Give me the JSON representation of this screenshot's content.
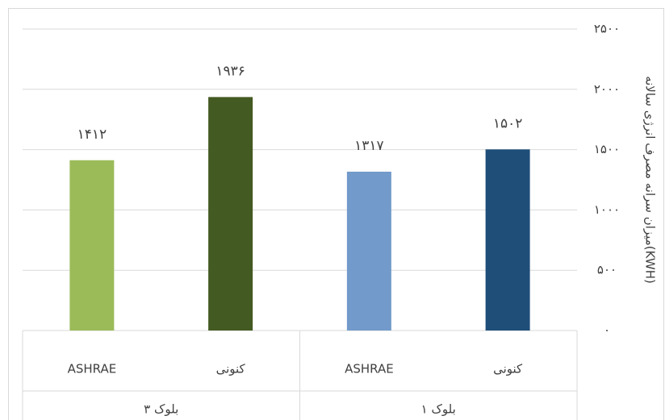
{
  "chart_data": {
    "type": "bar",
    "y_axis_label": "میزان سرانه مصرف انرژی سالانه(KWH)",
    "categories": [
      "ASHRAE",
      "کنونی",
      "ASHRAE",
      "کنونی"
    ],
    "groups": [
      "بلوک ۳",
      "بلوک ۱"
    ],
    "values": [
      1412,
      1936,
      1317,
      1502
    ],
    "value_labels": [
      "۱۴۱۲",
      "۱۹۳۶",
      "۱۳۱۷",
      "۱۵۰۲"
    ],
    "colors": [
      "#9bbb59",
      "#435a22",
      "#729aca",
      "#1f4e79"
    ],
    "ylim": [
      0,
      2500
    ],
    "yticks": [
      {
        "value": 0,
        "label": "۰"
      },
      {
        "value": 500,
        "label": "۵۰۰"
      },
      {
        "value": 1000,
        "label": "۱۰۰۰"
      },
      {
        "value": 1500,
        "label": "۱۵۰۰"
      },
      {
        "value": 2000,
        "label": "۲۰۰۰"
      },
      {
        "value": 2500,
        "label": "۲۵۰۰"
      }
    ],
    "grid": true
  }
}
